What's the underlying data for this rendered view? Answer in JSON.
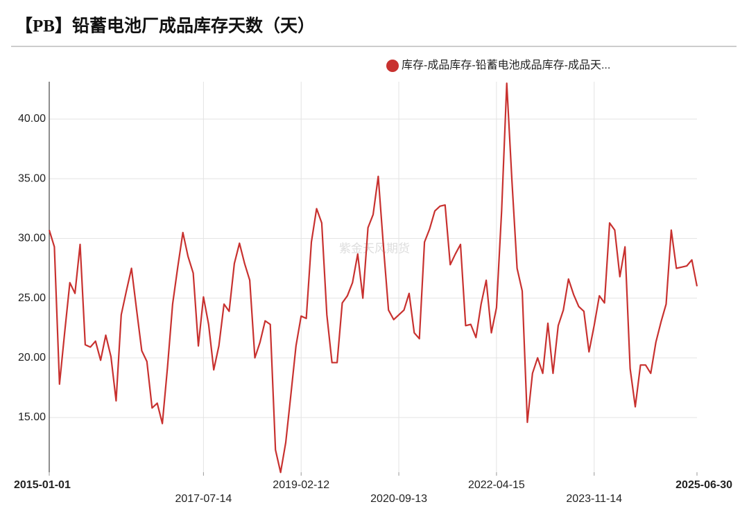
{
  "chart_data": {
    "type": "line",
    "title": "【PB】铅蓄电池厂成品库存天数（天）",
    "watermark": "紫金天风期货",
    "categories": [
      "2015-01-01",
      null,
      null,
      null,
      null,
      null,
      null,
      null,
      null,
      null,
      null,
      null,
      null,
      null,
      null,
      null,
      null,
      null,
      null,
      null,
      null,
      null,
      null,
      null,
      null,
      null,
      null,
      null,
      null,
      null,
      "2017-07-14",
      null,
      null,
      null,
      null,
      null,
      null,
      null,
      null,
      null,
      null,
      null,
      null,
      null,
      null,
      null,
      null,
      null,
      null,
      "2019-02-12",
      null,
      null,
      null,
      null,
      null,
      null,
      null,
      null,
      null,
      null,
      null,
      null,
      null,
      null,
      null,
      null,
      null,
      null,
      "2020-09-13",
      null,
      null,
      null,
      null,
      null,
      null,
      null,
      null,
      null,
      null,
      null,
      null,
      null,
      null,
      null,
      null,
      null,
      null,
      "2022-04-15",
      null,
      null,
      null,
      null,
      null,
      null,
      null,
      null,
      null,
      null,
      null,
      null,
      null,
      null,
      null,
      null,
      null,
      null,
      "2023-11-14",
      null,
      null,
      null,
      null,
      null,
      null,
      null,
      null,
      null,
      null,
      null,
      null,
      null,
      null,
      null,
      null,
      null,
      null,
      null,
      "2025-06-30"
    ],
    "series": [
      {
        "name": "库存-成品库存-铅蓄电池成品库存-成品天...",
        "color": "#c8312f",
        "values": [
          30.7,
          29.3,
          17.8,
          22.1,
          26.3,
          25.4,
          29.5,
          21.1,
          20.9,
          21.4,
          19.8,
          21.9,
          20.1,
          16.4,
          23.6,
          25.6,
          27.5,
          24.0,
          20.6,
          19.7,
          15.8,
          16.2,
          14.5,
          19.2,
          24.5,
          27.6,
          30.5,
          28.5,
          27.1,
          21.0,
          25.1,
          22.8,
          19.0,
          21.0,
          24.5,
          23.9,
          27.9,
          29.6,
          27.9,
          26.5,
          20.0,
          21.3,
          23.1,
          22.8,
          12.3,
          10.4,
          12.9,
          16.9,
          21.0,
          23.5,
          23.3,
          29.7,
          32.5,
          31.3,
          23.6,
          19.6,
          19.6,
          24.6,
          25.2,
          26.3,
          28.7,
          25.0,
          30.9,
          32.0,
          35.2,
          29.4,
          24.0,
          23.2,
          23.6,
          24.0,
          25.4,
          22.1,
          21.6,
          29.7,
          30.8,
          32.3,
          32.7,
          32.8,
          27.8,
          28.7,
          29.5,
          22.7,
          22.8,
          21.7,
          24.5,
          26.5,
          22.1,
          24.2,
          32.3,
          43.0,
          34.9,
          27.5,
          25.6,
          14.6,
          18.7,
          20.0,
          18.7,
          22.9,
          18.7,
          22.7,
          24.0,
          26.6,
          25.3,
          24.3,
          23.9,
          20.5,
          22.7,
          25.2,
          24.6,
          31.3,
          30.7,
          26.8,
          29.3,
          19.1,
          15.9,
          19.4,
          19.4,
          18.7,
          21.3,
          23.0,
          24.5,
          30.7,
          27.5,
          27.6,
          27.7,
          28.2,
          26.0
        ]
      }
    ],
    "ylim": [
      10.42,
      43.13
    ],
    "yticks": [
      {
        "value": 15,
        "label": "15.00"
      },
      {
        "value": 20,
        "label": "20.00"
      },
      {
        "value": 25,
        "label": "25.00"
      },
      {
        "value": 30,
        "label": "30.00"
      },
      {
        "value": 35,
        "label": "35.00"
      },
      {
        "value": 40,
        "label": "40.00"
      }
    ],
    "grid": true,
    "legend": "top-right"
  }
}
